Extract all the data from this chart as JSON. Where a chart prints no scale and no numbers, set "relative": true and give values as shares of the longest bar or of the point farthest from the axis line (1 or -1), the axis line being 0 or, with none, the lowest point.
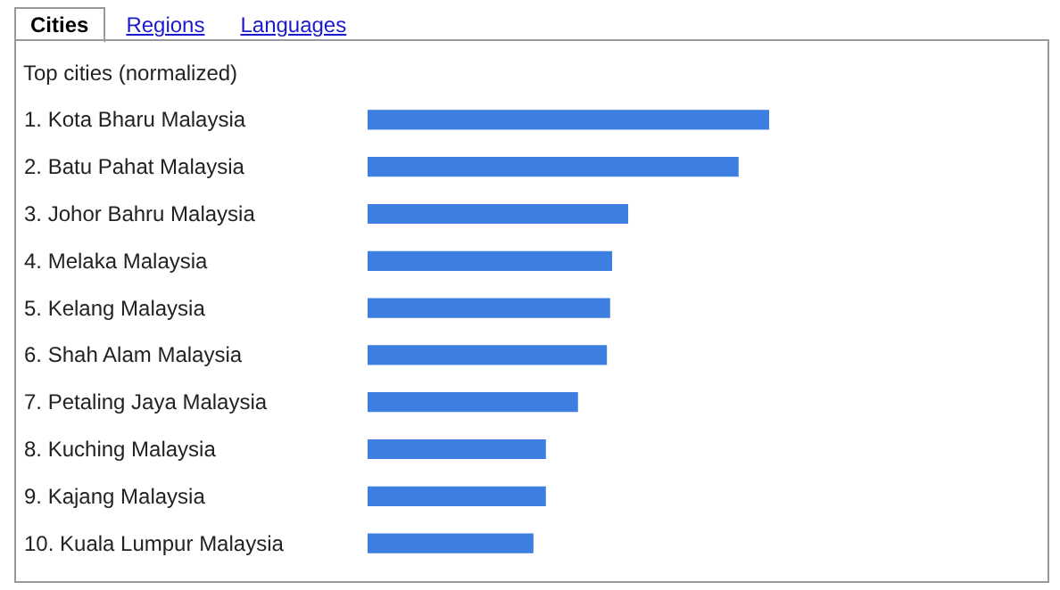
{
  "chart_data": {
    "type": "bar",
    "orientation": "horizontal",
    "relative": true,
    "title": "Top cities (normalized)",
    "annotations": [
      "Cities",
      "Regions",
      "Languages"
    ],
    "categories": [
      "1. Kota Bharu Malaysia",
      "2. Batu Pahat Malaysia",
      "3. Johor Bahru Malaysia",
      "4. Melaka Malaysia",
      "5. Kelang Malaysia",
      "6. Shah Alam Malaysia",
      "7. Petaling Jaya Malaysia",
      "8. Kuching Malaysia",
      "9. Kajang Malaysia",
      "10. Kuala Lumpur Malaysia"
    ],
    "values": [
      1,
      0.924,
      0.649,
      0.609,
      0.604,
      0.596,
      0.524,
      0.444,
      0.444,
      0.413
    ],
    "color": "#3d7fe0"
  }
}
